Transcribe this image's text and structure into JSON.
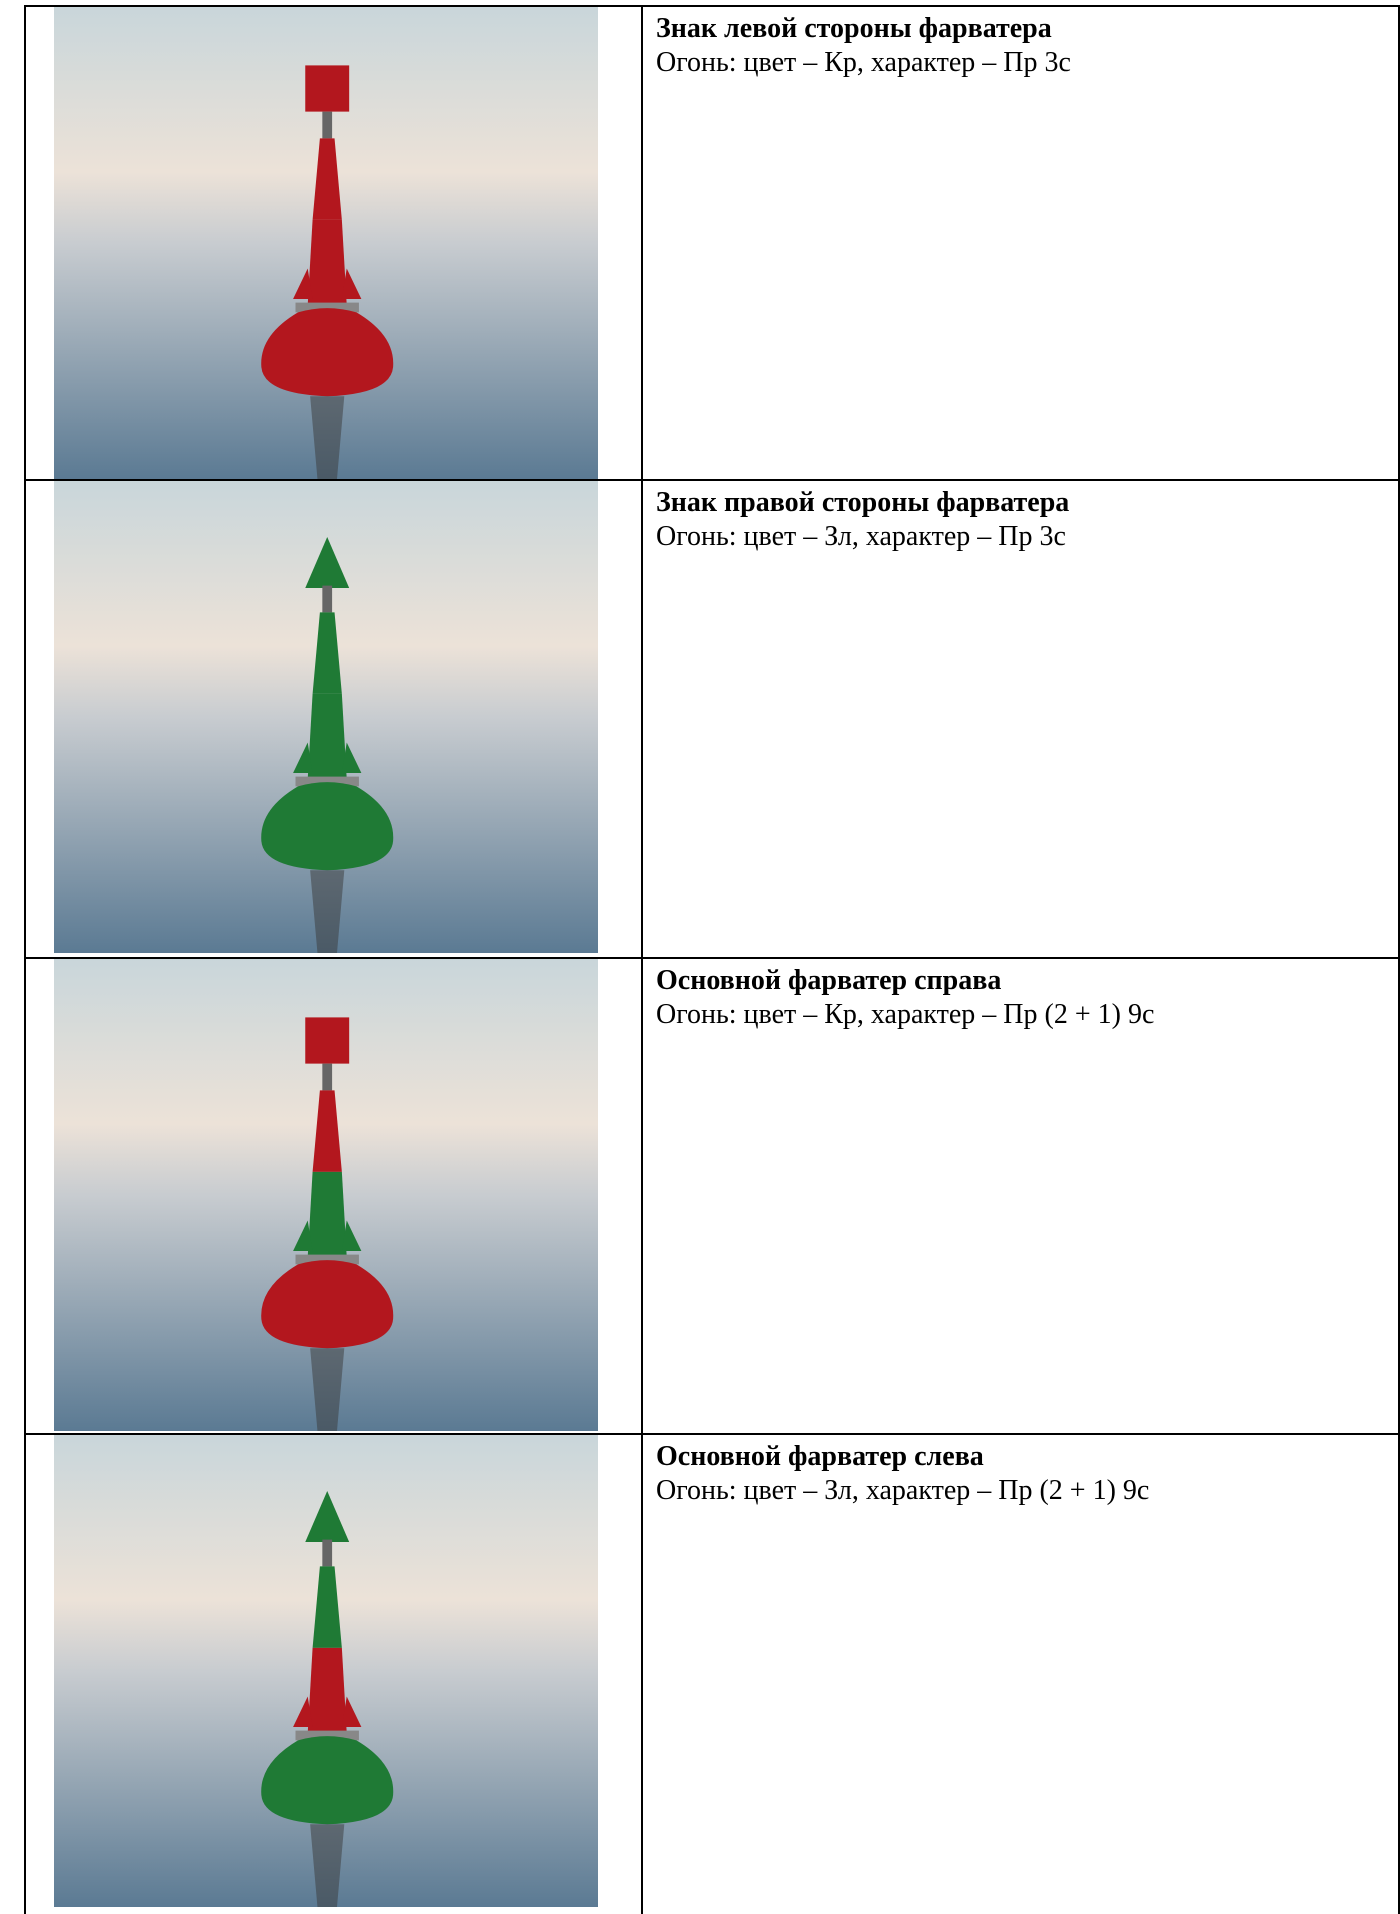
{
  "table": {
    "rows": [
      {
        "title": "Знак левой стороны фарватера",
        "light": "Огонь: цвет – Кр, характер – Пр 3с"
      },
      {
        "title": "Знак правой стороны фарватера",
        "light": "Огонь: цвет – Зл, характер – Пр 3с"
      },
      {
        "title": "Основной фарватер справа",
        "light": "Огонь: цвет – Кр, характер – Пр (2 + 1) 9с"
      },
      {
        "title": "Основной фарватер слева",
        "light": "Огонь: цвет – Зл, характер – Пр (2 + 1) 9с"
      }
    ]
  }
}
